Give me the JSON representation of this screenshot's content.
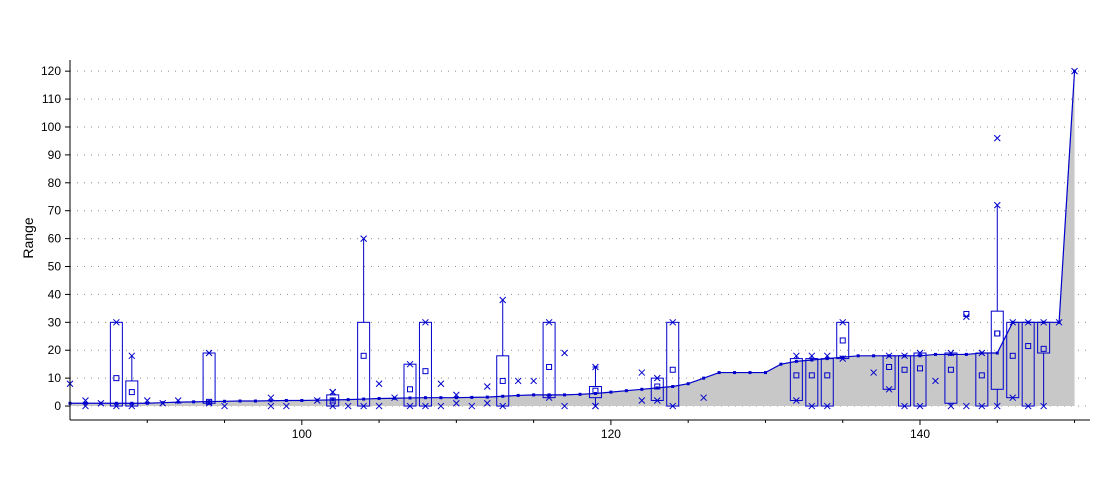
{
  "chart_data": {
    "type": "box",
    "title": "",
    "xlabel": "",
    "ylabel": "Range",
    "xlim": [
      85,
      151
    ],
    "ylim": [
      -5,
      124
    ],
    "xticks": [
      100,
      120,
      140
    ],
    "yticks": [
      0,
      10,
      20,
      30,
      40,
      50,
      60,
      70,
      80,
      90,
      100,
      110,
      120
    ],
    "grid": "dotted",
    "colors": {
      "series": "#0000cc",
      "fill": "#c8c8c8",
      "axis": "#000000",
      "grid": "#8c8c8c"
    },
    "area_curve": {
      "x": [
        85,
        86,
        87,
        88,
        89,
        90,
        91,
        92,
        93,
        94,
        95,
        96,
        97,
        98,
        99,
        100,
        101,
        102,
        103,
        104,
        105,
        106,
        107,
        108,
        109,
        110,
        111,
        112,
        113,
        114,
        115,
        116,
        117,
        118,
        119,
        120,
        121,
        122,
        123,
        124,
        125,
        126,
        127,
        128,
        129,
        130,
        131,
        132,
        133,
        134,
        135,
        136,
        137,
        138,
        139,
        140,
        141,
        142,
        143,
        144,
        145,
        146,
        147,
        148,
        149,
        150
      ],
      "y": [
        1,
        1,
        1,
        1,
        1,
        1,
        1.2,
        1.4,
        1.5,
        1.6,
        1.7,
        1.8,
        1.8,
        1.9,
        2,
        2,
        2.1,
        2.2,
        2.3,
        2.5,
        2.7,
        2.8,
        2.9,
        3,
        3,
        3,
        3.1,
        3.2,
        3.5,
        3.8,
        4,
        4,
        4,
        4.2,
        4.5,
        5,
        5.5,
        6,
        6.5,
        7,
        8,
        10,
        12,
        12,
        12,
        12,
        15,
        16,
        16.5,
        17,
        17.5,
        18,
        18,
        18,
        18,
        18,
        18.5,
        18.5,
        18.5,
        19,
        19,
        30,
        30,
        30,
        30,
        120
      ]
    },
    "boxes": [
      {
        "x": 88,
        "q1": 0,
        "q3": 30,
        "mean": 10,
        "median": 1,
        "min": 0,
        "max": 30
      },
      {
        "x": 89,
        "q1": 0,
        "q3": 9,
        "mean": 5,
        "median": 1,
        "min": 0,
        "max": 18
      },
      {
        "x": 94,
        "q1": 1,
        "q3": 19,
        "mean": 1.5,
        "median": 1,
        "min": 1,
        "max": 19
      },
      {
        "x": 102,
        "q1": 0,
        "q3": 4,
        "mean": 2,
        "median": 2,
        "min": 0,
        "max": 5
      },
      {
        "x": 104,
        "q1": 0,
        "q3": 30,
        "mean": 18,
        "median": 3,
        "min": 0,
        "max": 60
      },
      {
        "x": 107,
        "q1": 0,
        "q3": 15,
        "mean": 6,
        "median": 3,
        "min": 0,
        "max": 15
      },
      {
        "x": 108,
        "q1": 0,
        "q3": 30,
        "mean": 12.5,
        "median": 3,
        "min": 0,
        "max": 30
      },
      {
        "x": 113,
        "q1": 0,
        "q3": 18,
        "mean": 9,
        "median": 3,
        "min": 0,
        "max": 38
      },
      {
        "x": 116,
        "q1": 3,
        "q3": 30,
        "mean": 14,
        "median": 4,
        "min": 3,
        "max": 30
      },
      {
        "x": 119,
        "q1": 3,
        "q3": 7,
        "mean": 5.5,
        "median": 4.5,
        "min": 0,
        "max": 14
      },
      {
        "x": 123,
        "q1": 2,
        "q3": 10,
        "mean": 7,
        "median": 6.5,
        "min": 2,
        "max": 10
      },
      {
        "x": 124,
        "q1": 0,
        "q3": 30,
        "mean": 13,
        "median": 7,
        "min": 0,
        "max": 30
      },
      {
        "x": 132,
        "q1": 2,
        "q3": 17,
        "mean": 11,
        "median": 16,
        "min": 2,
        "max": 18
      },
      {
        "x": 133,
        "q1": 0,
        "q3": 17,
        "mean": 11,
        "median": 16.5,
        "min": 0,
        "max": 18
      },
      {
        "x": 134,
        "q1": 0,
        "q3": 17,
        "mean": 11,
        "median": 17,
        "min": 0,
        "max": 18
      },
      {
        "x": 135,
        "q1": 17,
        "q3": 30,
        "mean": 23.5,
        "median": 17.5,
        "min": 17,
        "max": 30
      },
      {
        "x": 138,
        "q1": 6,
        "q3": 18,
        "mean": 14,
        "median": 18,
        "min": 6,
        "max": 18
      },
      {
        "x": 139,
        "q1": 0,
        "q3": 18,
        "mean": 13,
        "median": 18,
        "min": 0,
        "max": 18
      },
      {
        "x": 140,
        "q1": 0,
        "q3": 19,
        "mean": 13.5,
        "median": 18,
        "min": 0,
        "max": 19
      },
      {
        "x": 142,
        "q1": 1,
        "q3": 19,
        "mean": 13,
        "median": 18.5,
        "min": 0,
        "max": 19
      },
      {
        "x": 144,
        "q1": 0,
        "q3": 19,
        "mean": 11,
        "median": 19,
        "min": 0,
        "max": 19
      },
      {
        "x": 145,
        "q1": 6,
        "q3": 34,
        "mean": 26,
        "median": 19,
        "min": 0,
        "max": 72
      },
      {
        "x": 146,
        "q1": 3,
        "q3": 30,
        "mean": 18,
        "median": 30,
        "min": 3,
        "max": 30
      },
      {
        "x": 147,
        "q1": 0,
        "q3": 30,
        "mean": 21.5,
        "median": 30,
        "min": 0,
        "max": 30
      },
      {
        "x": 148,
        "q1": 19,
        "q3": 30,
        "mean": 20.5,
        "median": 30,
        "min": 0,
        "max": 30
      }
    ],
    "crosses": [
      [
        85,
        8
      ],
      [
        86,
        2
      ],
      [
        86,
        0
      ],
      [
        87,
        1
      ],
      [
        90,
        2
      ],
      [
        91,
        1
      ],
      [
        92,
        2
      ],
      [
        95,
        0
      ],
      [
        98,
        3
      ],
      [
        98,
        0
      ],
      [
        99,
        0
      ],
      [
        101,
        2
      ],
      [
        102,
        5
      ],
      [
        103,
        0
      ],
      [
        105,
        8
      ],
      [
        105,
        0
      ],
      [
        106,
        3
      ],
      [
        109,
        8
      ],
      [
        109,
        0
      ],
      [
        110,
        4
      ],
      [
        110,
        1
      ],
      [
        111,
        0
      ],
      [
        112,
        7
      ],
      [
        112,
        1
      ],
      [
        114,
        9
      ],
      [
        115,
        9
      ],
      [
        117,
        19
      ],
      [
        117,
        0
      ],
      [
        119,
        0
      ],
      [
        122,
        12
      ],
      [
        122,
        2
      ],
      [
        126,
        3
      ],
      [
        137,
        12
      ],
      [
        141,
        9
      ],
      [
        143,
        32
      ],
      [
        143,
        0
      ],
      [
        145,
        96
      ],
      [
        149,
        30
      ],
      [
        150,
        120
      ]
    ],
    "outlier_squares": [
      [
        143,
        33
      ],
      [
        145,
        26
      ]
    ],
    "dashes": [
      [
        119,
        14
      ]
    ]
  }
}
